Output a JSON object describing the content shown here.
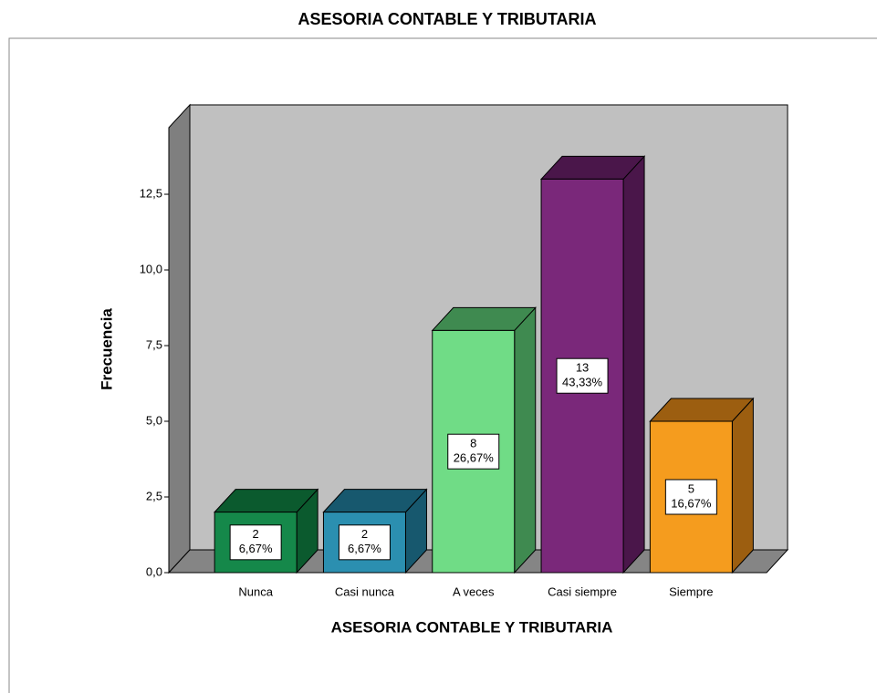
{
  "chart_data": {
    "type": "bar3d",
    "title": "ASESORIA CONTABLE Y TRIBUTARIA",
    "xlabel": "ASESORIA CONTABLE Y TRIBUTARIA",
    "ylabel": "Frecuencia",
    "categories": [
      "Nunca",
      "Casi nunca",
      "A veces",
      "Casi siempre",
      "Siempre"
    ],
    "values": [
      2,
      2,
      8,
      13,
      5
    ],
    "percent_labels": [
      "6,67%",
      "6,67%",
      "26,67%",
      "43,33%",
      "16,67%"
    ],
    "colors": [
      "#15884a",
      "#2b8fb0",
      "#70dc86",
      "#7a287a",
      "#f59c1e"
    ],
    "shade_colors": [
      "#0b5a2e",
      "#17586e",
      "#3f8a50",
      "#4a164a",
      "#9c5e10"
    ],
    "ylim": [
      0,
      14.7
    ],
    "yticks": [
      {
        "value": 0,
        "label": "0,0"
      },
      {
        "value": 2.5,
        "label": "2,5"
      },
      {
        "value": 5,
        "label": "5,0"
      },
      {
        "value": 7.5,
        "label": "7,5"
      },
      {
        "value": 10,
        "label": "10,0"
      },
      {
        "value": 12.5,
        "label": "12,5"
      }
    ]
  }
}
